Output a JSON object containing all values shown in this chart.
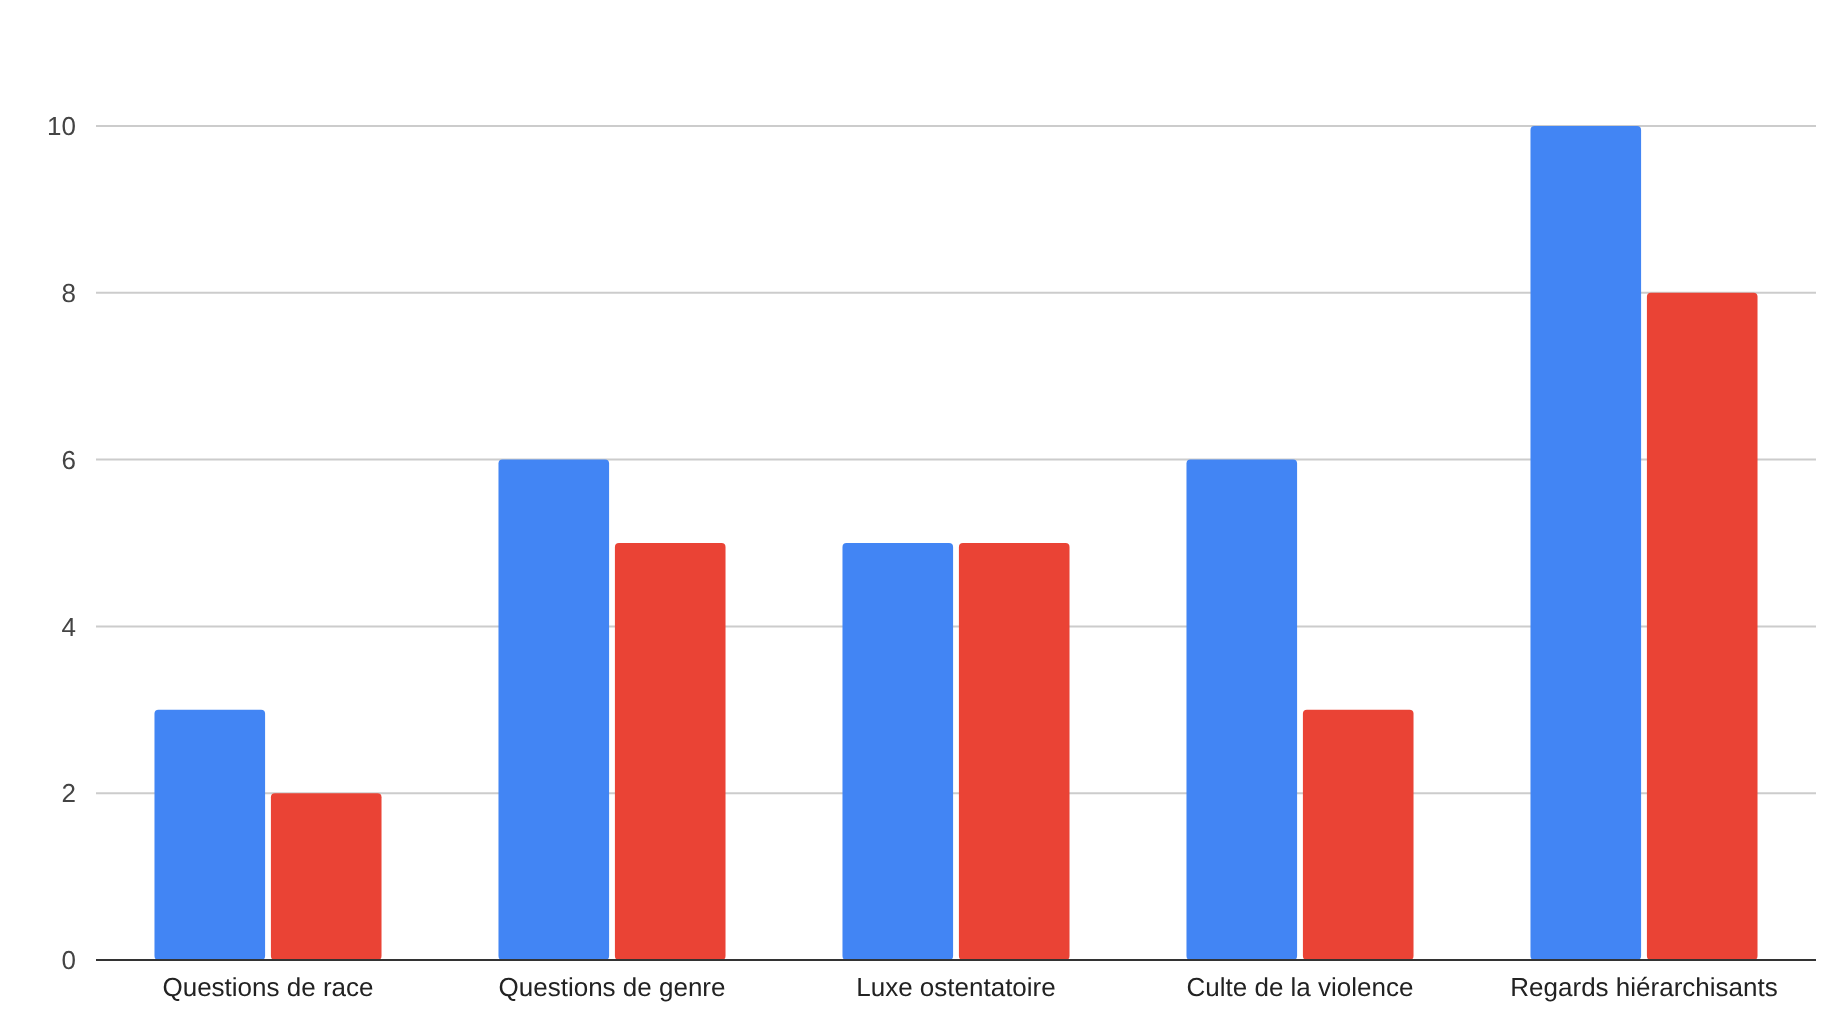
{
  "chart_data": {
    "type": "bar",
    "categories": [
      "Questions de race",
      "Questions de genre",
      "Luxe ostentatoire",
      "Culte de la violence",
      "Regards hiérarchisants"
    ],
    "series": [
      {
        "color": "#4285f4",
        "values": [
          3,
          6,
          5,
          6,
          10
        ]
      },
      {
        "color": "#ea4335",
        "values": [
          2,
          5,
          5,
          3,
          8
        ]
      }
    ],
    "ylim": [
      0,
      10
    ],
    "yticks": [
      0,
      2,
      4,
      6,
      8,
      10
    ],
    "grid": "y"
  }
}
